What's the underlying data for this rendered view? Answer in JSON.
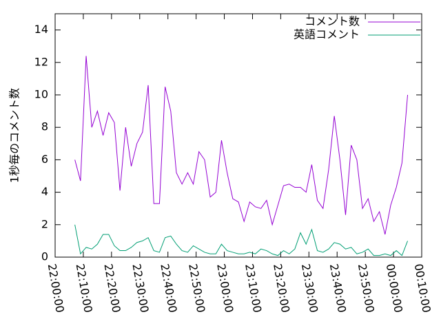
{
  "chart_data": {
    "type": "line",
    "y_label": "1秒毎のコメント数",
    "x": [
      "22:07:00",
      "22:09:00",
      "22:11:00",
      "22:13:00",
      "22:15:00",
      "22:17:00",
      "22:19:00",
      "22:21:00",
      "22:23:00",
      "22:25:00",
      "22:27:00",
      "22:29:00",
      "22:31:00",
      "22:33:00",
      "22:35:00",
      "22:37:00",
      "22:39:00",
      "22:41:00",
      "22:43:00",
      "22:45:00",
      "22:47:00",
      "22:49:00",
      "22:51:00",
      "22:53:00",
      "22:55:00",
      "22:57:00",
      "22:59:00",
      "23:01:00",
      "23:03:00",
      "23:05:00",
      "23:07:00",
      "23:09:00",
      "23:11:00",
      "23:13:00",
      "23:15:00",
      "23:17:00",
      "23:19:00",
      "23:21:00",
      "23:23:00",
      "23:25:00",
      "23:27:00",
      "23:29:00",
      "23:31:00",
      "23:33:00",
      "23:35:00",
      "23:37:00",
      "23:39:00",
      "23:41:00",
      "23:43:00",
      "23:45:00",
      "23:47:00",
      "23:49:00",
      "23:51:00",
      "23:53:00",
      "23:55:00",
      "23:57:00",
      "23:59:00",
      "00:01:00",
      "00:03:00",
      "00:05:00"
    ],
    "series": [
      {
        "name": "コメント数",
        "color": "#9400d3",
        "values": [
          6,
          4.7,
          12.4,
          8,
          9,
          7.5,
          8.9,
          8.3,
          4.1,
          8,
          5.6,
          7,
          7.7,
          10.6,
          3.3,
          3.3,
          10.5,
          9,
          5.2,
          4.5,
          5.2,
          4.5,
          6.5,
          6,
          3.7,
          4,
          7.2,
          5.2,
          3.6,
          3.4,
          2.2,
          3.4,
          3.1,
          3,
          3.5,
          2,
          3.2,
          4.4,
          4.5,
          4.3,
          4.3,
          4,
          5.7,
          3.5,
          3,
          5.4,
          8.7,
          6,
          2.6,
          6.9,
          6,
          3,
          3.6,
          2.2,
          2.8,
          1.4,
          3.2,
          4.3,
          5.8,
          10
        ]
      },
      {
        "name": "英語コメント",
        "color": "#009e73",
        "values": [
          2,
          0.2,
          0.6,
          0.5,
          0.8,
          1.4,
          1.4,
          0.7,
          0.4,
          0.4,
          0.6,
          0.9,
          1,
          1.2,
          0.4,
          0.3,
          1.2,
          1.3,
          0.8,
          0.4,
          0.3,
          0.7,
          0.5,
          0.3,
          0.2,
          0.2,
          0.8,
          0.4,
          0.3,
          0.2,
          0.2,
          0.3,
          0.2,
          0.5,
          0.4,
          0.2,
          0.1,
          0.4,
          0.2,
          0.5,
          1.5,
          0.8,
          1.7,
          0.4,
          0.3,
          0.5,
          0.9,
          0.8,
          0.5,
          0.6,
          0.2,
          0.3,
          0.5,
          0.1,
          0.1,
          0.2,
          0.1,
          0.4,
          0.1,
          1
        ]
      }
    ],
    "xlim": [
      "22:00:00",
      "00:10:00"
    ],
    "xticks": [
      "22:00:00",
      "22:10:00",
      "22:20:00",
      "22:30:00",
      "22:40:00",
      "22:50:00",
      "23:00:00",
      "23:10:00",
      "23:20:00",
      "23:30:00",
      "23:40:00",
      "23:50:00",
      "00:00:00",
      "00:10:00"
    ],
    "ylim": [
      0,
      15
    ],
    "yticks": [
      0,
      2,
      4,
      6,
      8,
      10,
      12,
      14
    ],
    "legend": "top-right"
  }
}
